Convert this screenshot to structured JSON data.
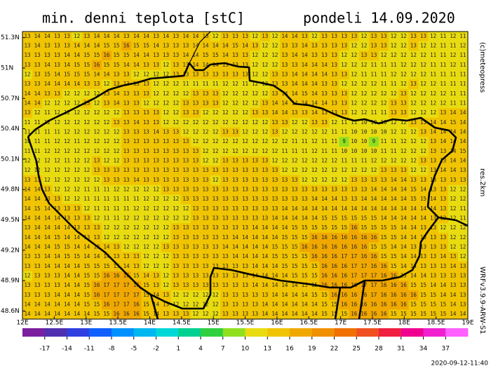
{
  "title": "min. denni teplota [stC]",
  "date": "pondeli 14.09.2020",
  "credits": [
    "(c)meteopress",
    "res.2km",
    "WRFv3.9.9-ARW-S1"
  ],
  "timestamp": "2020-09-12-11:40",
  "map": {
    "xlim": [
      12,
      19
    ],
    "ylim": [
      48.52,
      51.36
    ],
    "xticks": [
      {
        "value": 12,
        "label": "12E"
      },
      {
        "value": 12.5,
        "label": "12.5E"
      },
      {
        "value": 13,
        "label": "13E"
      },
      {
        "value": 13.5,
        "label": "13.5E"
      },
      {
        "value": 14,
        "label": "14E"
      },
      {
        "value": 14.5,
        "label": "14.5E"
      },
      {
        "value": 15,
        "label": "15E"
      },
      {
        "value": 15.5,
        "label": "15.5E"
      },
      {
        "value": 16,
        "label": "16E"
      },
      {
        "value": 16.5,
        "label": "16.5E"
      },
      {
        "value": 17,
        "label": "17E"
      },
      {
        "value": 17.5,
        "label": "17.5E"
      },
      {
        "value": 18,
        "label": "18E"
      },
      {
        "value": 18.5,
        "label": "18.5E"
      },
      {
        "value": 19,
        "label": "19E"
      }
    ],
    "yticks": [
      {
        "value": 51.3,
        "label": "51.3N"
      },
      {
        "value": 51,
        "label": "51N"
      },
      {
        "value": 50.7,
        "label": "50.7N"
      },
      {
        "value": 50.4,
        "label": "50.4N"
      },
      {
        "value": 50.1,
        "label": "50.1N"
      },
      {
        "value": 49.8,
        "label": "49.8N"
      },
      {
        "value": 49.5,
        "label": "49.5N"
      },
      {
        "value": 49.2,
        "label": "49.2N"
      },
      {
        "value": 48.9,
        "label": "48.9N"
      },
      {
        "value": 48.6,
        "label": "48.6N"
      }
    ],
    "cells": [
      [
        13,
        14,
        14,
        13,
        13,
        12,
        13,
        14,
        14,
        14,
        13,
        14,
        14,
        13,
        14,
        13,
        14,
        14,
        13,
        12,
        13,
        13,
        13,
        12,
        13,
        12,
        14,
        14,
        13,
        12,
        13,
        13,
        13,
        13,
        12,
        13,
        13,
        12,
        12,
        13,
        13,
        12,
        11,
        12,
        11
      ],
      [
        13,
        14,
        13,
        13,
        13,
        14,
        14,
        14,
        15,
        15,
        16,
        15,
        15,
        14,
        13,
        13,
        13,
        14,
        14,
        14,
        14,
        15,
        14,
        13,
        12,
        12,
        13,
        13,
        14,
        13,
        13,
        13,
        13,
        12,
        12,
        13,
        13,
        12,
        12,
        13,
        12,
        12,
        11,
        11,
        12
      ],
      [
        13,
        13,
        13,
        13,
        14,
        14,
        15,
        15,
        16,
        15,
        15,
        14,
        14,
        13,
        13,
        13,
        14,
        14,
        15,
        15,
        14,
        13,
        13,
        12,
        12,
        12,
        13,
        14,
        14,
        13,
        13,
        13,
        12,
        12,
        13,
        13,
        12,
        12,
        12,
        12,
        12,
        11,
        11,
        12,
        11
      ],
      [
        13,
        13,
        14,
        13,
        14,
        15,
        15,
        16,
        15,
        15,
        14,
        14,
        13,
        13,
        12,
        13,
        13,
        14,
        14,
        14,
        13,
        13,
        13,
        12,
        12,
        12,
        13,
        13,
        14,
        14,
        14,
        13,
        12,
        12,
        12,
        11,
        11,
        11,
        12,
        12,
        12,
        11,
        11,
        12,
        11
      ],
      [
        12,
        13,
        15,
        14,
        15,
        15,
        15,
        14,
        14,
        13,
        13,
        12,
        12,
        12,
        12,
        13,
        13,
        13,
        13,
        13,
        13,
        13,
        13,
        12,
        12,
        13,
        13,
        14,
        14,
        14,
        14,
        13,
        13,
        12,
        11,
        11,
        11,
        12,
        12,
        12,
        12,
        11,
        11,
        11,
        11
      ],
      [
        13,
        13,
        14,
        14,
        14,
        14,
        13,
        13,
        12,
        13,
        13,
        13,
        13,
        12,
        12,
        12,
        11,
        11,
        11,
        11,
        12,
        12,
        11,
        12,
        12,
        13,
        13,
        14,
        14,
        14,
        13,
        13,
        12,
        12,
        12,
        12,
        11,
        11,
        12,
        13,
        12,
        12,
        11,
        11,
        11
      ],
      [
        14,
        14,
        13,
        13,
        12,
        12,
        12,
        12,
        13,
        14,
        13,
        13,
        13,
        12,
        12,
        12,
        12,
        13,
        13,
        13,
        12,
        12,
        12,
        12,
        12,
        13,
        14,
        14,
        15,
        14,
        13,
        13,
        13,
        12,
        12,
        12,
        12,
        12,
        13,
        12,
        12,
        12,
        12,
        11,
        11
      ],
      [
        14,
        14,
        12,
        12,
        12,
        12,
        13,
        12,
        13,
        14,
        13,
        13,
        12,
        12,
        12,
        12,
        13,
        13,
        13,
        13,
        12,
        12,
        12,
        12,
        13,
        14,
        14,
        14,
        14,
        14,
        14,
        13,
        13,
        12,
        12,
        12,
        12,
        13,
        13,
        12,
        12,
        12,
        12,
        11,
        11
      ],
      [
        13,
        12,
        11,
        12,
        12,
        12,
        12,
        12,
        12,
        12,
        13,
        13,
        13,
        13,
        12,
        12,
        13,
        13,
        12,
        12,
        12,
        12,
        12,
        13,
        13,
        14,
        14,
        13,
        13,
        14,
        13,
        13,
        13,
        12,
        12,
        11,
        11,
        13,
        13,
        12,
        12,
        12,
        13,
        14,
        14
      ],
      [
        11,
        11,
        12,
        12,
        12,
        12,
        12,
        12,
        12,
        13,
        13,
        14,
        13,
        13,
        12,
        12,
        12,
        12,
        12,
        12,
        12,
        12,
        12,
        12,
        12,
        13,
        13,
        12,
        12,
        13,
        13,
        12,
        11,
        11,
        10,
        10,
        10,
        12,
        12,
        13,
        13,
        14,
        14,
        15,
        14
      ],
      [
        11,
        11,
        11,
        11,
        12,
        12,
        12,
        12,
        12,
        12,
        13,
        13,
        13,
        14,
        13,
        13,
        12,
        12,
        12,
        12,
        13,
        13,
        12,
        12,
        12,
        13,
        12,
        12,
        12,
        12,
        12,
        11,
        11,
        10,
        10,
        10,
        10,
        12,
        12,
        12,
        13,
        14,
        14,
        14,
        14
      ],
      [
        10,
        11,
        11,
        12,
        12,
        11,
        12,
        12,
        12,
        12,
        13,
        13,
        13,
        13,
        13,
        13,
        13,
        12,
        12,
        12,
        12,
        12,
        12,
        12,
        12,
        12,
        12,
        11,
        11,
        12,
        11,
        11,
        9,
        10,
        10,
        9,
        11,
        11,
        12,
        12,
        12,
        13,
        14,
        14,
        14
      ],
      [
        11,
        11,
        12,
        12,
        12,
        12,
        12,
        12,
        12,
        12,
        13,
        13,
        13,
        13,
        13,
        13,
        13,
        13,
        12,
        12,
        12,
        12,
        12,
        12,
        12,
        12,
        11,
        11,
        11,
        12,
        11,
        11,
        10,
        10,
        10,
        10,
        11,
        11,
        12,
        12,
        12,
        13,
        13,
        14,
        15
      ],
      [
        12,
        12,
        12,
        12,
        11,
        12,
        12,
        13,
        12,
        12,
        13,
        13,
        13,
        13,
        13,
        13,
        13,
        13,
        12,
        12,
        13,
        13,
        13,
        13,
        13,
        12,
        12,
        12,
        12,
        12,
        12,
        12,
        11,
        11,
        11,
        12,
        12,
        12,
        12,
        12,
        13,
        13,
        13,
        14,
        14
      ],
      [
        12,
        12,
        12,
        12,
        12,
        12,
        12,
        13,
        13,
        13,
        13,
        13,
        13,
        13,
        13,
        13,
        13,
        13,
        13,
        13,
        13,
        13,
        13,
        13,
        13,
        13,
        12,
        12,
        12,
        12,
        12,
        12,
        12,
        12,
        12,
        12,
        13,
        13,
        13,
        12,
        12,
        13,
        14,
        14,
        13
      ],
      [
        13,
        13,
        12,
        12,
        12,
        12,
        12,
        12,
        13,
        13,
        13,
        14,
        13,
        13,
        13,
        13,
        13,
        13,
        13,
        12,
        13,
        13,
        13,
        13,
        13,
        13,
        13,
        13,
        12,
        12,
        12,
        12,
        12,
        13,
        13,
        13,
        13,
        14,
        14,
        13,
        13,
        13,
        13,
        13,
        13
      ],
      [
        14,
        14,
        13,
        12,
        12,
        12,
        11,
        11,
        11,
        12,
        12,
        12,
        12,
        12,
        13,
        13,
        13,
        13,
        13,
        13,
        13,
        13,
        13,
        13,
        13,
        13,
        13,
        13,
        13,
        13,
        13,
        13,
        13,
        13,
        13,
        14,
        14,
        14,
        14,
        15,
        14,
        13,
        13,
        12,
        12
      ],
      [
        14,
        14,
        13,
        13,
        12,
        12,
        11,
        11,
        11,
        11,
        11,
        11,
        12,
        12,
        12,
        12,
        13,
        13,
        13,
        13,
        13,
        13,
        13,
        13,
        13,
        13,
        13,
        13,
        13,
        14,
        14,
        14,
        13,
        13,
        14,
        14,
        14,
        14,
        14,
        15,
        15,
        14,
        13,
        12,
        12
      ],
      [
        14,
        15,
        14,
        13,
        13,
        13,
        12,
        11,
        11,
        11,
        11,
        12,
        12,
        12,
        12,
        12,
        12,
        13,
        13,
        13,
        13,
        13,
        13,
        13,
        13,
        13,
        14,
        14,
        14,
        14,
        14,
        14,
        14,
        14,
        14,
        14,
        14,
        14,
        14,
        14,
        14,
        14,
        13,
        12,
        11
      ],
      [
        14,
        14,
        14,
        14,
        13,
        13,
        13,
        12,
        11,
        11,
        12,
        12,
        12,
        12,
        12,
        12,
        12,
        13,
        13,
        13,
        13,
        13,
        13,
        13,
        13,
        14,
        14,
        14,
        14,
        14,
        15,
        15,
        15,
        15,
        15,
        15,
        14,
        14,
        14,
        14,
        14,
        13,
        13,
        12,
        11
      ],
      [
        13,
        14,
        14,
        14,
        14,
        13,
        13,
        13,
        12,
        12,
        12,
        12,
        12,
        12,
        12,
        13,
        13,
        13,
        13,
        13,
        13,
        13,
        13,
        14,
        14,
        14,
        14,
        15,
        15,
        15,
        15,
        15,
        15,
        16,
        15,
        15,
        15,
        15,
        14,
        14,
        13,
        13,
        12,
        12,
        12
      ],
      [
        14,
        14,
        14,
        15,
        14,
        14,
        13,
        13,
        12,
        12,
        12,
        12,
        12,
        12,
        12,
        13,
        13,
        13,
        13,
        13,
        13,
        14,
        14,
        14,
        14,
        14,
        15,
        15,
        15,
        16,
        16,
        16,
        16,
        16,
        16,
        16,
        15,
        15,
        14,
        14,
        13,
        13,
        13,
        12,
        12
      ],
      [
        14,
        14,
        14,
        15,
        15,
        14,
        14,
        13,
        14,
        13,
        12,
        12,
        12,
        12,
        13,
        13,
        13,
        13,
        13,
        13,
        14,
        14,
        14,
        14,
        14,
        15,
        15,
        15,
        16,
        16,
        16,
        16,
        16,
        16,
        16,
        15,
        15,
        14,
        14,
        13,
        13,
        13,
        13,
        12,
        12
      ],
      [
        13,
        13,
        14,
        14,
        15,
        15,
        14,
        14,
        14,
        13,
        13,
        13,
        12,
        12,
        12,
        13,
        13,
        13,
        13,
        13,
        13,
        14,
        14,
        14,
        14,
        15,
        15,
        15,
        15,
        16,
        16,
        16,
        17,
        17,
        16,
        16,
        15,
        15,
        14,
        14,
        13,
        13,
        14,
        13,
        12
      ],
      [
        13,
        13,
        14,
        14,
        14,
        14,
        15,
        15,
        15,
        15,
        14,
        13,
        12,
        12,
        12,
        13,
        13,
        13,
        13,
        13,
        13,
        13,
        13,
        14,
        14,
        14,
        15,
        15,
        15,
        15,
        16,
        16,
        16,
        17,
        17,
        16,
        16,
        15,
        14,
        14,
        13,
        13,
        13,
        14,
        13
      ],
      [
        12,
        13,
        13,
        13,
        14,
        14,
        15,
        15,
        16,
        16,
        16,
        15,
        14,
        13,
        12,
        13,
        13,
        13,
        13,
        13,
        13,
        13,
        13,
        14,
        14,
        14,
        14,
        15,
        15,
        15,
        16,
        16,
        16,
        17,
        17,
        17,
        16,
        16,
        15,
        14,
        14,
        13,
        13,
        13,
        13
      ],
      [
        13,
        13,
        13,
        13,
        14,
        14,
        15,
        16,
        17,
        17,
        17,
        16,
        15,
        13,
        12,
        13,
        13,
        13,
        13,
        13,
        13,
        13,
        13,
        14,
        14,
        14,
        14,
        14,
        15,
        15,
        16,
        16,
        16,
        16,
        17,
        17,
        16,
        16,
        16,
        15,
        15,
        14,
        14,
        13,
        13
      ],
      [
        13,
        13,
        13,
        14,
        14,
        14,
        15,
        16,
        17,
        17,
        17,
        17,
        15,
        14,
        13,
        12,
        12,
        12,
        12,
        12,
        13,
        13,
        13,
        13,
        13,
        14,
        14,
        14,
        14,
        15,
        15,
        16,
        16,
        16,
        16,
        17,
        16,
        16,
        16,
        16,
        15,
        15,
        14,
        14,
        13
      ],
      [
        14,
        14,
        14,
        14,
        14,
        14,
        15,
        15,
        16,
        17,
        17,
        16,
        15,
        14,
        13,
        12,
        12,
        12,
        12,
        12,
        13,
        13,
        13,
        13,
        14,
        14,
        14,
        14,
        14,
        14,
        15,
        15,
        16,
        16,
        16,
        16,
        16,
        16,
        16,
        15,
        15,
        15,
        15,
        14,
        13
      ],
      [
        14,
        14,
        14,
        14,
        14,
        14,
        14,
        15,
        15,
        16,
        16,
        16,
        15,
        14,
        13,
        13,
        13,
        12,
        12,
        12,
        13,
        13,
        13,
        13,
        14,
        14,
        14,
        14,
        14,
        14,
        15,
        15,
        15,
        16,
        16,
        16,
        16,
        15,
        15,
        15,
        15,
        15,
        15,
        14,
        14
      ]
    ]
  },
  "colorbar": {
    "lim": [
      -20,
      40
    ],
    "step": 3,
    "ticks": [
      -17,
      -14,
      -11,
      -8,
      -5,
      -2,
      1,
      4,
      7,
      10,
      13,
      16,
      19,
      22,
      25,
      28,
      31,
      34,
      37
    ],
    "colors": [
      "#7a1fa0",
      "#5030b0",
      "#3040e0",
      "#1060ff",
      "#0090ff",
      "#00b8f0",
      "#00d8d8",
      "#00d090",
      "#30d040",
      "#90e020",
      "#e8dc10",
      "#f0c400",
      "#f0a800",
      "#f09000",
      "#f07000",
      "#f05020",
      "#f02040",
      "#f00090",
      "#f020d0",
      "#ff60ff"
    ]
  }
}
